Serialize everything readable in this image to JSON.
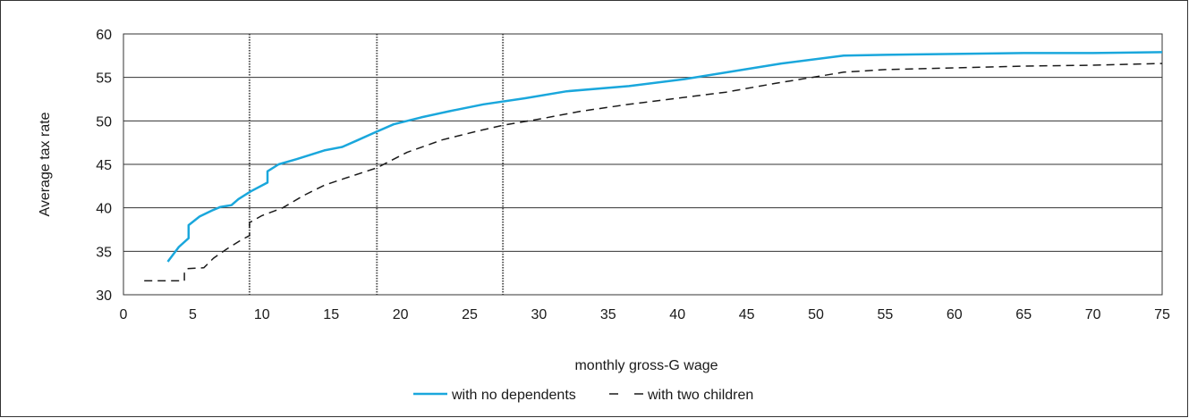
{
  "chart_data": {
    "type": "line",
    "xlabel": "monthly gross-G wage",
    "ylabel": "Average tax rate",
    "xlim": [
      0,
      75
    ],
    "ylim": [
      30,
      60
    ],
    "xticks": [
      0,
      5,
      10,
      15,
      20,
      25,
      30,
      35,
      40,
      45,
      50,
      55,
      60,
      65,
      70,
      75
    ],
    "yticks": [
      30,
      35,
      40,
      45,
      50,
      55,
      60
    ],
    "grid": "horizontal",
    "reference_lines_x": [
      9.1,
      18.3,
      27.4
    ],
    "legend_position": "bottom",
    "series": [
      {
        "name": "with no dependents",
        "color": "#1aa7dc",
        "style": "solid",
        "x": [
          3.2,
          4.0,
          4.7,
          4.7,
          5.5,
          6.4,
          7.0,
          7.8,
          8.3,
          9.2,
          10.4,
          10.4,
          11.2,
          12.5,
          13.5,
          14.5,
          15.8,
          16.8,
          18.2,
          19.5,
          21.5,
          23.5,
          26.0,
          29.0,
          32.0,
          36.5,
          40.5,
          44.0,
          47.5,
          52.0,
          55.0,
          60.0,
          65.0,
          70.0,
          75.0
        ],
        "values": [
          33.8,
          35.5,
          36.5,
          38.0,
          39.0,
          39.7,
          40.1,
          40.3,
          41.0,
          41.9,
          42.9,
          44.2,
          45.0,
          45.6,
          46.1,
          46.6,
          47.0,
          47.7,
          48.7,
          49.6,
          50.4,
          51.1,
          51.9,
          52.6,
          53.4,
          54.0,
          54.8,
          55.7,
          56.6,
          57.5,
          57.6,
          57.7,
          57.8,
          57.8,
          57.9
        ]
      },
      {
        "name": "with two children",
        "color": "#1a1a1a",
        "style": "dashed",
        "x": [
          1.5,
          4.4,
          4.4,
          4.6,
          4.6,
          5.8,
          6.5,
          7.5,
          8.5,
          9.1,
          9.1,
          10.0,
          11.5,
          13.0,
          14.5,
          16.0,
          18.3,
          20.5,
          23.0,
          25.5,
          27.4,
          30.0,
          33.0,
          36.5,
          40.0,
          43.5,
          47.0,
          50.5,
          52.0,
          55.0,
          60.0,
          65.0,
          70.0,
          75.0
        ],
        "values": [
          31.6,
          31.6,
          32.6,
          33.0,
          33.0,
          33.1,
          34.2,
          35.3,
          36.3,
          36.8,
          38.3,
          39.1,
          40.0,
          41.4,
          42.6,
          43.4,
          44.6,
          46.4,
          47.8,
          48.8,
          49.5,
          50.2,
          51.1,
          51.9,
          52.6,
          53.3,
          54.3,
          55.2,
          55.6,
          55.9,
          56.1,
          56.3,
          56.4,
          56.6
        ]
      }
    ]
  }
}
